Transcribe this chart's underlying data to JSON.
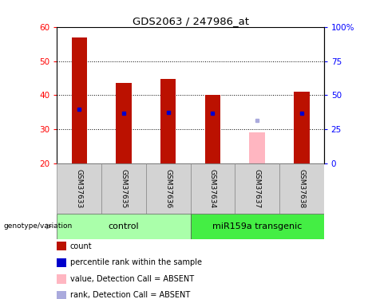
{
  "title": "GDS2063 / 247986_at",
  "samples": [
    "GSM37633",
    "GSM37635",
    "GSM37636",
    "GSM37634",
    "GSM37637",
    "GSM37638"
  ],
  "count_values": [
    57.0,
    43.5,
    44.8,
    40.2,
    null,
    41.0
  ],
  "count_absent": [
    null,
    null,
    null,
    null,
    29.2,
    null
  ],
  "percentile_values": [
    36.0,
    34.7,
    35.0,
    34.7,
    null,
    34.7
  ],
  "percentile_absent": [
    null,
    null,
    null,
    null,
    32.5,
    null
  ],
  "ylim": [
    20,
    60
  ],
  "yticks": [
    20,
    30,
    40,
    50,
    60
  ],
  "groups": [
    {
      "label": "control",
      "n_samples": 3,
      "color": "#aaffaa"
    },
    {
      "label": "miR159a transgenic",
      "n_samples": 3,
      "color": "#44ee44"
    }
  ],
  "bar_color_present": "#bb1100",
  "bar_color_absent": "#ffb6c1",
  "dot_color_present": "#0000cc",
  "dot_color_absent": "#aaaadd",
  "bar_width": 0.35,
  "background_color": "#ffffff",
  "legend_items": [
    {
      "label": "count",
      "color": "#bb1100"
    },
    {
      "label": "percentile rank within the sample",
      "color": "#0000cc"
    },
    {
      "label": "value, Detection Call = ABSENT",
      "color": "#ffb6c1"
    },
    {
      "label": "rank, Detection Call = ABSENT",
      "color": "#aaaadd"
    }
  ]
}
